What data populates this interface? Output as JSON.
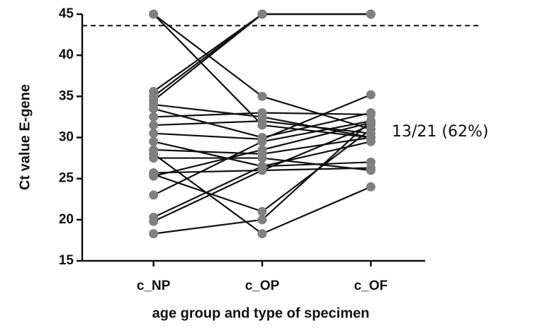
{
  "chart_data": {
    "type": "paired-line",
    "ylabel": "Ct value E-gene",
    "xlabel": "age group and type of specimen",
    "annotation": "13/21 (62%)",
    "categories": [
      "c_NP",
      "c_OP",
      "c_OF"
    ],
    "reference_line": 43.6,
    "line_color": "#111111",
    "marker_color": "#808080",
    "ylim": [
      15,
      45
    ],
    "yticks": [
      15,
      20,
      25,
      30,
      35,
      40,
      45
    ],
    "series": [
      {
        "values": [
          45,
          31.5,
          30
        ]
      },
      {
        "values": [
          45,
          35,
          31
        ]
      },
      {
        "values": [
          35.6,
          45,
          45
        ]
      },
      {
        "values": [
          35,
          45,
          45
        ]
      },
      {
        "values": [
          34.5,
          45,
          45
        ]
      },
      {
        "values": [
          34,
          32.5,
          30
        ]
      },
      {
        "values": [
          33.5,
          30,
          33
        ]
      },
      {
        "values": [
          32.5,
          33,
          32.8
        ]
      },
      {
        "values": [
          31.5,
          32,
          30.5
        ]
      },
      {
        "values": [
          30.5,
          29.8,
          35.2
        ]
      },
      {
        "values": [
          29.5,
          26.5,
          27
        ]
      },
      {
        "values": [
          28.5,
          28,
          30
        ]
      },
      {
        "values": [
          27.5,
          27.5,
          26
        ]
      },
      {
        "values": [
          25.7,
          26,
          26.3
        ]
      },
      {
        "values": [
          25.3,
          28.5,
          31.8
        ]
      },
      {
        "values": [
          23,
          29.5,
          32
        ]
      },
      {
        "values": [
          20.3,
          26.5,
          29.5
        ]
      },
      {
        "values": [
          19.8,
          26,
          31.5
        ]
      },
      {
        "values": [
          25.5,
          21,
          31
        ]
      },
      {
        "values": [
          18.3,
          20,
          32
        ]
      },
      {
        "values": [
          28,
          18.3,
          24
        ]
      }
    ]
  }
}
